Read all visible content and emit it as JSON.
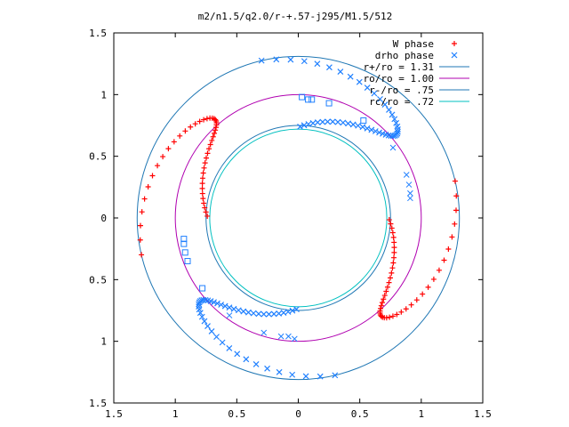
{
  "chart_data": {
    "type": "scatter",
    "title": "m2/n1.5/q2.0/r-+.57-j295/M1.5/512",
    "xlabel": "",
    "ylabel": "",
    "xlim": [
      -1.5,
      1.5
    ],
    "ylim": [
      -1.5,
      1.5
    ],
    "x_ticks": [
      -1.5,
      -1,
      -0.5,
      0,
      0.5,
      1,
      1.5
    ],
    "y_ticks": [
      -1.5,
      -1,
      -0.5,
      0,
      0.5,
      1,
      1.5
    ],
    "x_tick_labels": [
      "1.5",
      "1",
      "0.5",
      "0",
      "0.5",
      "1",
      "1.5"
    ],
    "y_tick_labels": [
      "1.5",
      "1",
      "0.5",
      "0",
      "0.5",
      "1",
      "1.5"
    ],
    "grid": false,
    "legend_position": "top-right",
    "series": [
      {
        "name": "W phase",
        "marker": "+",
        "color": "#ff0000",
        "kind": "spiral",
        "rotation_deg": [
          0,
          180
        ]
      },
      {
        "name": "drho phase",
        "marker": "x",
        "color": "#2080ff",
        "kind": "spiral",
        "rotation_deg": [
          90,
          270
        ]
      },
      {
        "name": "r+/ro = 1.31",
        "marker": "line",
        "color": "#1f77b4",
        "kind": "circle",
        "radius": 1.31
      },
      {
        "name": "ro/ro = 1.00",
        "marker": "line",
        "color": "#b000b0",
        "kind": "circle",
        "radius": 1.0
      },
      {
        "name": "r-/ro = .75",
        "marker": "line",
        "color": "#1f77b4",
        "kind": "circle",
        "radius": 0.75
      },
      {
        "name": "rc/ro = .72",
        "marker": "line",
        "color": "#00c0c0",
        "kind": "circle",
        "radius": 0.72
      }
    ],
    "scatter_markers": [
      {
        "x": 0.03,
        "y": 0.98,
        "symbol": "square"
      },
      {
        "x": 0.08,
        "y": 0.96,
        "symbol": "square"
      },
      {
        "x": 0.11,
        "y": 0.96,
        "symbol": "square"
      },
      {
        "x": 0.25,
        "y": 0.93,
        "symbol": "square"
      },
      {
        "x": 0.53,
        "y": 0.79,
        "symbol": "square"
      },
      {
        "x": 0.77,
        "y": 0.57,
        "symbol": "x"
      },
      {
        "x": 0.88,
        "y": 0.35,
        "symbol": "x"
      },
      {
        "x": 0.9,
        "y": 0.27,
        "symbol": "x"
      },
      {
        "x": 0.91,
        "y": 0.2,
        "symbol": "x"
      },
      {
        "x": 0.91,
        "y": 0.16,
        "symbol": "x"
      },
      {
        "x": -0.03,
        "y": -0.98,
        "symbol": "x"
      },
      {
        "x": -0.08,
        "y": -0.96,
        "symbol": "x"
      },
      {
        "x": -0.14,
        "y": -0.96,
        "symbol": "x"
      },
      {
        "x": -0.28,
        "y": -0.93,
        "symbol": "x"
      },
      {
        "x": -0.56,
        "y": -0.79,
        "symbol": "x"
      },
      {
        "x": -0.78,
        "y": -0.57,
        "symbol": "square"
      },
      {
        "x": -0.9,
        "y": -0.35,
        "symbol": "square"
      },
      {
        "x": -0.92,
        "y": -0.28,
        "symbol": "square"
      },
      {
        "x": -0.93,
        "y": -0.21,
        "symbol": "square"
      },
      {
        "x": -0.93,
        "y": -0.17,
        "symbol": "square"
      }
    ]
  }
}
